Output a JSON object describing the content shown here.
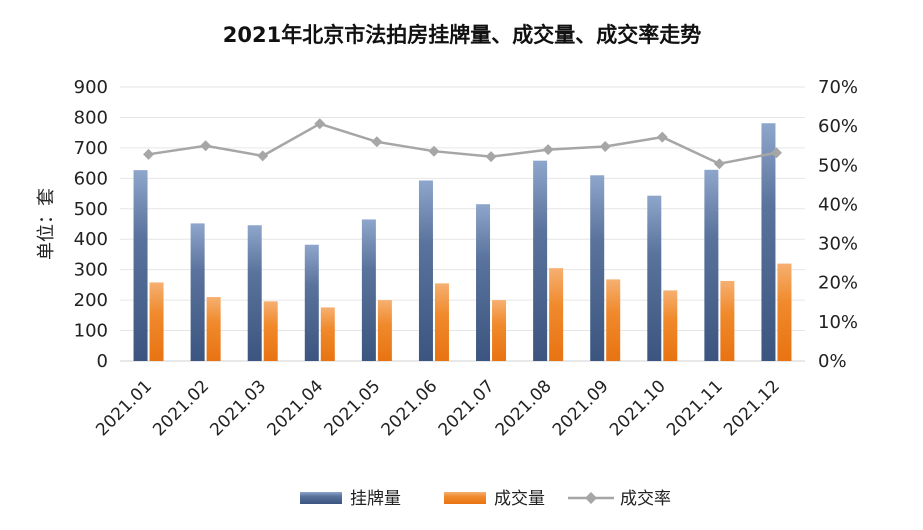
{
  "chart_data": {
    "type": "bar",
    "title": "2021年北京市法拍房挂牌量、成交量、成交率走势",
    "ylabel": "单位：套",
    "categories": [
      "2021.01",
      "2021.02",
      "2021.03",
      "2021.04",
      "2021.05",
      "2021.06",
      "2021.07",
      "2021.08",
      "2021.09",
      "2021.10",
      "2021.11",
      "2021.12"
    ],
    "series": [
      {
        "name": "挂牌量",
        "type": "bar",
        "axis": "left",
        "color": "#4a6490",
        "values": [
          627,
          452,
          446,
          382,
          465,
          593,
          515,
          658,
          610,
          543,
          628,
          781
        ]
      },
      {
        "name": "成交量",
        "type": "bar",
        "axis": "left",
        "color": "#f08a2c",
        "values": [
          258,
          210,
          196,
          176,
          200,
          255,
          200,
          305,
          268,
          232,
          263,
          320
        ]
      },
      {
        "name": "成交率",
        "type": "line",
        "axis": "right",
        "color": "#a6a6a6",
        "values": [
          52.8,
          55.0,
          52.4,
          60.6,
          56.0,
          53.6,
          52.2,
          54.0,
          54.8,
          57.2,
          50.4,
          53.2
        ]
      }
    ],
    "y_left": {
      "min": 0,
      "max": 900,
      "step": 100
    },
    "y_right": {
      "min": 0,
      "max": 70,
      "step": 10,
      "unit": "%"
    },
    "legend": "bottom"
  }
}
